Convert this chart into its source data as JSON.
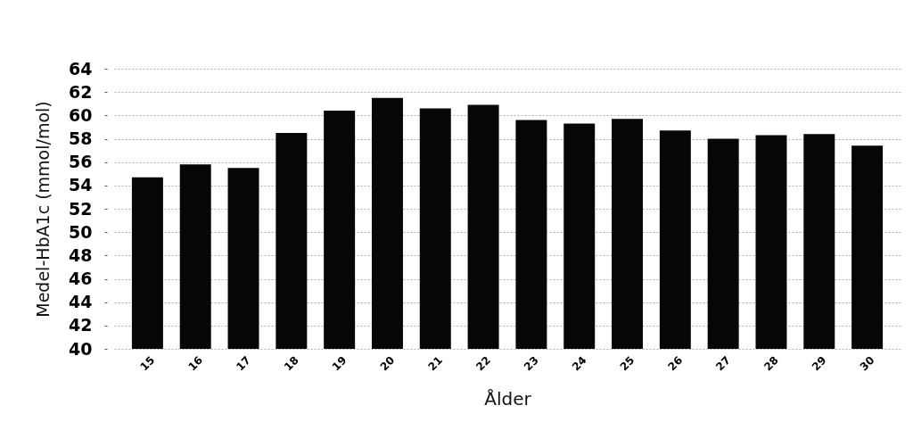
{
  "chart_data": {
    "type": "bar",
    "xlabel": "Ålder",
    "ylabel": "Medel-HbA1c (mmol/mol)",
    "categories": [
      "15",
      "16",
      "17",
      "18",
      "19",
      "20",
      "21",
      "22",
      "23",
      "24",
      "25",
      "26",
      "27",
      "28",
      "29",
      "30"
    ],
    "values": [
      54.7,
      55.8,
      55.5,
      58.5,
      60.4,
      61.5,
      60.6,
      60.9,
      59.6,
      59.3,
      59.7,
      58.7,
      58.0,
      58.3,
      58.4,
      57.4
    ],
    "color": "#050608",
    "ylim": [
      40,
      64
    ],
    "yticks": [
      40,
      42,
      44,
      46,
      48,
      50,
      52,
      54,
      56,
      58,
      60,
      62,
      64
    ],
    "grid": "y"
  }
}
